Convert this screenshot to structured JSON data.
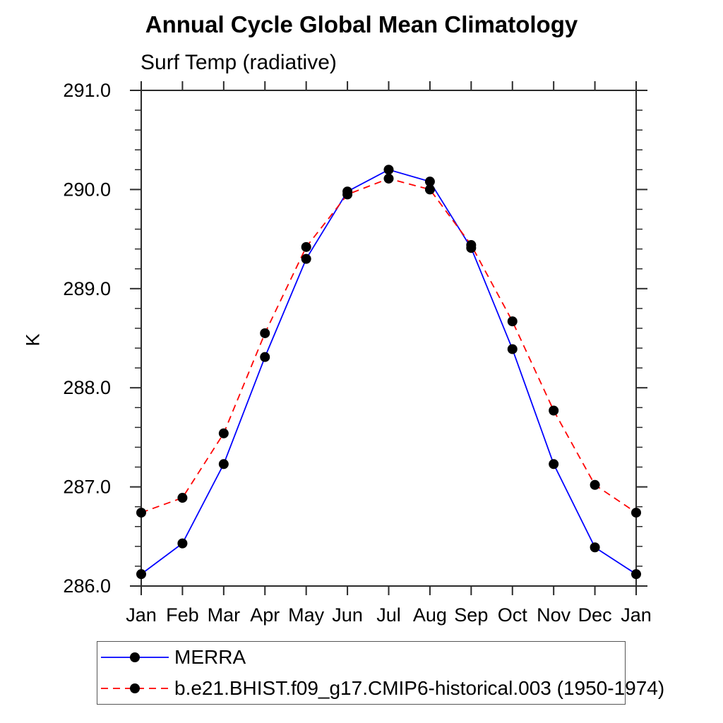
{
  "colors": {
    "merra_line": "#0000ff",
    "model_line": "#ff0000",
    "marker": "#000000",
    "axis": "#2b2b2b",
    "text": "#000000"
  },
  "chart_data": {
    "type": "line",
    "title": "Annual Cycle Global Mean Climatology",
    "subtitle": "Surf Temp (radiative)",
    "ylabel": "K",
    "ylim": [
      286.0,
      291.0
    ],
    "y_major_step": 1.0,
    "y_minor_step": 0.2,
    "y_tick_labels": [
      "286.0",
      "287.0",
      "288.0",
      "289.0",
      "290.0",
      "291.0"
    ],
    "categories": [
      "Jan",
      "Feb",
      "Mar",
      "Apr",
      "May",
      "Jun",
      "Jul",
      "Aug",
      "Sep",
      "Oct",
      "Nov",
      "Dec",
      "Jan"
    ],
    "grid": false,
    "legend_position": "bottom-left",
    "series": [
      {
        "name": "MERRA",
        "color": "#0000ff",
        "line_style": "solid",
        "marker": "filled-circle",
        "values": [
          286.12,
          286.43,
          287.23,
          288.31,
          289.3,
          289.98,
          290.2,
          290.08,
          289.41,
          288.39,
          287.23,
          286.39,
          286.12
        ]
      },
      {
        "name": "b.e21.BHIST.f09_g17.CMIP6-historical.003 (1950-1974)",
        "color": "#ff0000",
        "line_style": "dashed",
        "marker": "filled-circle",
        "values": [
          286.74,
          286.89,
          287.54,
          288.55,
          289.42,
          289.95,
          290.11,
          290.0,
          289.44,
          288.67,
          287.77,
          287.02,
          286.74
        ]
      }
    ]
  }
}
